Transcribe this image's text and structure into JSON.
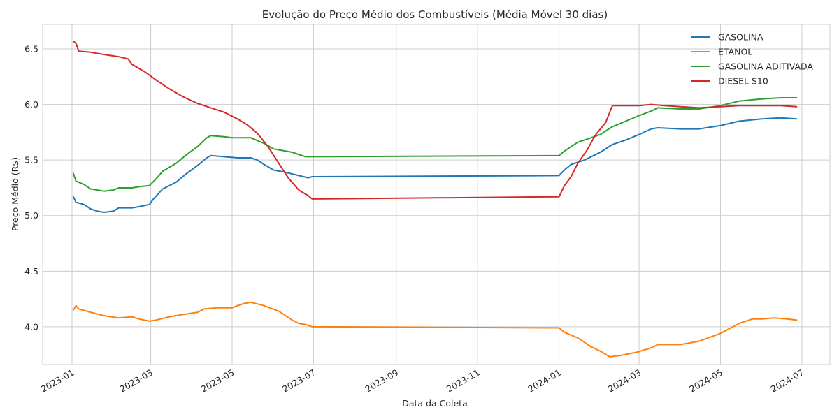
{
  "chart_data": {
    "type": "line",
    "title": "Evolução do Preço Médio dos Combustíveis (Média Móvel 30 dias)",
    "xlabel": "Data da Coleta",
    "ylabel": "Preço Médio (R$)",
    "ylim": [
      3.66,
      6.72
    ],
    "xlim": [
      "2022-12-10",
      "2024-07-22"
    ],
    "x_ticks": [
      "2023-01",
      "2023-03",
      "2023-05",
      "2023-07",
      "2023-09",
      "2023-11",
      "2024-01",
      "2024-03",
      "2024-05",
      "2024-07"
    ],
    "y_ticks": [
      "4.0",
      "4.5",
      "5.0",
      "5.5",
      "6.0",
      "6.5"
    ],
    "grid": true,
    "legend_position": "top-right",
    "series": [
      {
        "name": "GASOLINA",
        "color": "#1f77b4",
        "points": [
          [
            "2023-01-02",
            5.17
          ],
          [
            "2023-01-04",
            5.12
          ],
          [
            "2023-01-10",
            5.1
          ],
          [
            "2023-01-15",
            5.06
          ],
          [
            "2023-01-20",
            5.04
          ],
          [
            "2023-01-25",
            5.03
          ],
          [
            "2023-02-01",
            5.04
          ],
          [
            "2023-02-05",
            5.07
          ],
          [
            "2023-02-15",
            5.07
          ],
          [
            "2023-02-20",
            5.08
          ],
          [
            "2023-02-28",
            5.1
          ],
          [
            "2023-03-03",
            5.15
          ],
          [
            "2023-03-10",
            5.24
          ],
          [
            "2023-03-20",
            5.3
          ],
          [
            "2023-03-28",
            5.38
          ],
          [
            "2023-04-05",
            5.45
          ],
          [
            "2023-04-12",
            5.52
          ],
          [
            "2023-04-15",
            5.54
          ],
          [
            "2023-04-25",
            5.53
          ],
          [
            "2023-05-05",
            5.52
          ],
          [
            "2023-05-15",
            5.52
          ],
          [
            "2023-05-20",
            5.5
          ],
          [
            "2023-05-25",
            5.46
          ],
          [
            "2023-06-01",
            5.41
          ],
          [
            "2023-06-10",
            5.39
          ],
          [
            "2023-06-20",
            5.36
          ],
          [
            "2023-06-27",
            5.34
          ],
          [
            "2023-06-30",
            5.35
          ],
          [
            "2024-01-01",
            5.36
          ],
          [
            "2024-01-05",
            5.41
          ],
          [
            "2024-01-10",
            5.46
          ],
          [
            "2024-01-20",
            5.5
          ],
          [
            "2024-02-01",
            5.57
          ],
          [
            "2024-02-10",
            5.64
          ],
          [
            "2024-02-20",
            5.68
          ],
          [
            "2024-03-01",
            5.73
          ],
          [
            "2024-03-10",
            5.78
          ],
          [
            "2024-03-15",
            5.79
          ],
          [
            "2024-04-01",
            5.78
          ],
          [
            "2024-04-15",
            5.78
          ],
          [
            "2024-05-01",
            5.81
          ],
          [
            "2024-05-15",
            5.85
          ],
          [
            "2024-06-01",
            5.87
          ],
          [
            "2024-06-15",
            5.88
          ],
          [
            "2024-06-27",
            5.87
          ]
        ]
      },
      {
        "name": "ETANOL",
        "color": "#ff7f0e",
        "points": [
          [
            "2023-01-02",
            4.15
          ],
          [
            "2023-01-04",
            4.19
          ],
          [
            "2023-01-06",
            4.16
          ],
          [
            "2023-01-15",
            4.13
          ],
          [
            "2023-01-25",
            4.1
          ],
          [
            "2023-02-05",
            4.08
          ],
          [
            "2023-02-15",
            4.09
          ],
          [
            "2023-02-20",
            4.07
          ],
          [
            "2023-02-28",
            4.05
          ],
          [
            "2023-03-05",
            4.06
          ],
          [
            "2023-03-15",
            4.09
          ],
          [
            "2023-03-25",
            4.11
          ],
          [
            "2023-04-05",
            4.13
          ],
          [
            "2023-04-10",
            4.16
          ],
          [
            "2023-04-20",
            4.17
          ],
          [
            "2023-05-01",
            4.17
          ],
          [
            "2023-05-05",
            4.19
          ],
          [
            "2023-05-10",
            4.21
          ],
          [
            "2023-05-15",
            4.22
          ],
          [
            "2023-05-25",
            4.19
          ],
          [
            "2023-06-05",
            4.14
          ],
          [
            "2023-06-15",
            4.06
          ],
          [
            "2023-06-20",
            4.03
          ],
          [
            "2023-06-25",
            4.02
          ],
          [
            "2023-06-30",
            4.0
          ],
          [
            "2024-01-01",
            3.99
          ],
          [
            "2024-01-05",
            3.95
          ],
          [
            "2024-01-15",
            3.9
          ],
          [
            "2024-01-25",
            3.82
          ],
          [
            "2024-02-01",
            3.78
          ],
          [
            "2024-02-08",
            3.73
          ],
          [
            "2024-02-15",
            3.74
          ],
          [
            "2024-02-28",
            3.77
          ],
          [
            "2024-03-10",
            3.81
          ],
          [
            "2024-03-15",
            3.84
          ],
          [
            "2024-04-01",
            3.84
          ],
          [
            "2024-04-15",
            3.87
          ],
          [
            "2024-05-01",
            3.94
          ],
          [
            "2024-05-15",
            4.03
          ],
          [
            "2024-05-25",
            4.07
          ],
          [
            "2024-06-01",
            4.07
          ],
          [
            "2024-06-10",
            4.08
          ],
          [
            "2024-06-20",
            4.07
          ],
          [
            "2024-06-27",
            4.06
          ]
        ]
      },
      {
        "name": "GASOLINA ADITIVADA",
        "color": "#2ca02c",
        "points": [
          [
            "2023-01-02",
            5.38
          ],
          [
            "2023-01-04",
            5.31
          ],
          [
            "2023-01-10",
            5.28
          ],
          [
            "2023-01-15",
            5.24
          ],
          [
            "2023-01-25",
            5.22
          ],
          [
            "2023-02-01",
            5.23
          ],
          [
            "2023-02-05",
            5.25
          ],
          [
            "2023-02-15",
            5.25
          ],
          [
            "2023-02-20",
            5.26
          ],
          [
            "2023-02-28",
            5.27
          ],
          [
            "2023-03-05",
            5.33
          ],
          [
            "2023-03-10",
            5.4
          ],
          [
            "2023-03-20",
            5.47
          ],
          [
            "2023-03-28",
            5.55
          ],
          [
            "2023-04-05",
            5.62
          ],
          [
            "2023-04-12",
            5.7
          ],
          [
            "2023-04-15",
            5.72
          ],
          [
            "2023-04-25",
            5.71
          ],
          [
            "2023-05-01",
            5.7
          ],
          [
            "2023-05-15",
            5.7
          ],
          [
            "2023-05-25",
            5.65
          ],
          [
            "2023-06-01",
            5.6
          ],
          [
            "2023-06-15",
            5.57
          ],
          [
            "2023-06-25",
            5.53
          ],
          [
            "2023-06-30",
            5.53
          ],
          [
            "2024-01-01",
            5.54
          ],
          [
            "2024-01-05",
            5.58
          ],
          [
            "2024-01-15",
            5.66
          ],
          [
            "2024-01-25",
            5.7
          ],
          [
            "2024-02-01",
            5.73
          ],
          [
            "2024-02-10",
            5.8
          ],
          [
            "2024-02-20",
            5.85
          ],
          [
            "2024-03-01",
            5.9
          ],
          [
            "2024-03-10",
            5.94
          ],
          [
            "2024-03-15",
            5.97
          ],
          [
            "2024-04-01",
            5.96
          ],
          [
            "2024-04-15",
            5.96
          ],
          [
            "2024-05-01",
            5.99
          ],
          [
            "2024-05-15",
            6.03
          ],
          [
            "2024-06-01",
            6.05
          ],
          [
            "2024-06-15",
            6.06
          ],
          [
            "2024-06-27",
            6.06
          ]
        ]
      },
      {
        "name": "DIESEL S10",
        "color": "#d62728",
        "points": [
          [
            "2023-01-02",
            6.57
          ],
          [
            "2023-01-04",
            6.55
          ],
          [
            "2023-01-06",
            6.48
          ],
          [
            "2023-01-15",
            6.47
          ],
          [
            "2023-01-25",
            6.45
          ],
          [
            "2023-02-05",
            6.43
          ],
          [
            "2023-02-12",
            6.41
          ],
          [
            "2023-02-15",
            6.36
          ],
          [
            "2023-02-25",
            6.29
          ],
          [
            "2023-03-05",
            6.22
          ],
          [
            "2023-03-15",
            6.14
          ],
          [
            "2023-03-25",
            6.07
          ],
          [
            "2023-04-05",
            6.01
          ],
          [
            "2023-04-15",
            5.97
          ],
          [
            "2023-04-25",
            5.93
          ],
          [
            "2023-05-05",
            5.87
          ],
          [
            "2023-05-12",
            5.82
          ],
          [
            "2023-05-20",
            5.74
          ],
          [
            "2023-05-28",
            5.62
          ],
          [
            "2023-06-05",
            5.47
          ],
          [
            "2023-06-12",
            5.34
          ],
          [
            "2023-06-20",
            5.23
          ],
          [
            "2023-06-27",
            5.18
          ],
          [
            "2023-06-30",
            5.15
          ],
          [
            "2024-01-01",
            5.17
          ],
          [
            "2024-01-05",
            5.27
          ],
          [
            "2024-01-10",
            5.35
          ],
          [
            "2024-01-15",
            5.47
          ],
          [
            "2024-01-22",
            5.59
          ],
          [
            "2024-01-28",
            5.72
          ],
          [
            "2024-02-05",
            5.84
          ],
          [
            "2024-02-10",
            5.99
          ],
          [
            "2024-03-01",
            5.99
          ],
          [
            "2024-03-10",
            6.0
          ],
          [
            "2024-03-20",
            5.99
          ],
          [
            "2024-04-01",
            5.98
          ],
          [
            "2024-04-15",
            5.97
          ],
          [
            "2024-05-01",
            5.98
          ],
          [
            "2024-05-15",
            5.99
          ],
          [
            "2024-06-01",
            5.99
          ],
          [
            "2024-06-15",
            5.99
          ],
          [
            "2024-06-27",
            5.98
          ]
        ]
      }
    ]
  }
}
